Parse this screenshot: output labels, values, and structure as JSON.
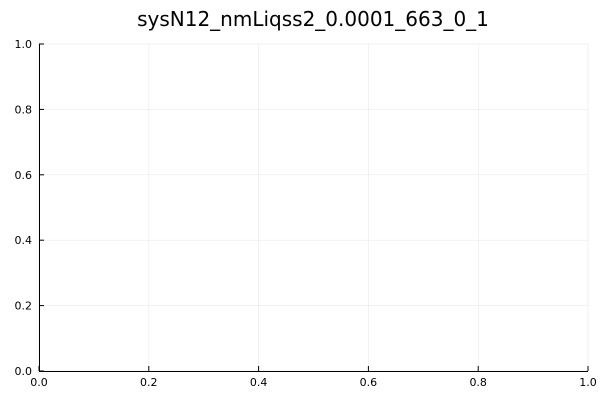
{
  "chart_data": {
    "type": "line",
    "title": "sysN12_nmLiqss2_0.0001_663_0_1",
    "xlabel": "",
    "ylabel": "",
    "xlim": [
      0,
      1
    ],
    "ylim": [
      0,
      1
    ],
    "x_ticks": [
      {
        "value": 0,
        "label": "0.0"
      },
      {
        "value": 0.2,
        "label": "0.2"
      },
      {
        "value": 0.4,
        "label": "0.4"
      },
      {
        "value": 0.6,
        "label": "0.6"
      },
      {
        "value": 0.8,
        "label": "0.8"
      },
      {
        "value": 1,
        "label": "1.0"
      }
    ],
    "y_ticks": [
      {
        "value": 0,
        "label": "0.0"
      },
      {
        "value": 0.2,
        "label": "0.2"
      },
      {
        "value": 0.4,
        "label": "0.4"
      },
      {
        "value": 0.6,
        "label": "0.6"
      },
      {
        "value": 0.8,
        "label": "0.8"
      },
      {
        "value": 1,
        "label": "1.0"
      }
    ],
    "grid": true,
    "series": []
  }
}
